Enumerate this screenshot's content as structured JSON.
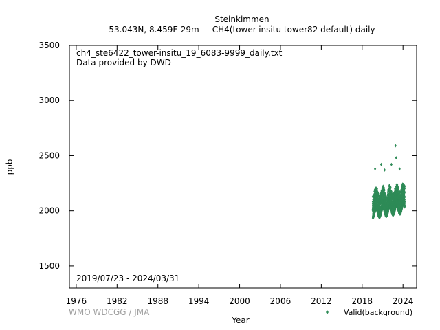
{
  "chart_data": {
    "type": "scatter",
    "title": "Steinkimmen",
    "subtitle": "53.043N, 8.459E 29m     CH4(tower-insitu tower82 default) daily",
    "xlabel": "Year",
    "ylabel": "ppb",
    "xlim": [
      1975,
      2026
    ],
    "ylim": [
      1300,
      3500
    ],
    "x_ticks": [
      1976,
      1982,
      1988,
      1994,
      2000,
      2006,
      2012,
      2018,
      2024
    ],
    "y_ticks": [
      1500,
      2000,
      2500,
      3000,
      3500
    ],
    "x_tick_labels": [
      "1976",
      "1982",
      "1988",
      "1994",
      "2000",
      "2006",
      "2012",
      "2018",
      "2024"
    ],
    "y_tick_labels": [
      "1500",
      "2000",
      "2500",
      "3000",
      "3500"
    ],
    "file_label": "ch4_ste6422_tower-insitu_19_6083-9999_daily.txt",
    "provider_label": "Data provided by DWD",
    "date_range": "2019/07/23 - 2024/03/31",
    "credit": "WMO WDCGG / JMA",
    "grid": false,
    "legend_position": "bottom-right",
    "series": [
      {
        "name": "Valid(background)",
        "color": "#2e8b57",
        "marker": "diamond",
        "x_start": 2019.56,
        "x_end": 2024.25,
        "baseline_ppb": 1990,
        "trend_ppb_per_year": 10,
        "typical_spread_ppb": [
          -20,
          180
        ],
        "notable_points": [
          {
            "x": 2019.9,
            "y": 2380
          },
          {
            "x": 2020.8,
            "y": 2420
          },
          {
            "x": 2021.3,
            "y": 2370
          },
          {
            "x": 2022.3,
            "y": 2420
          },
          {
            "x": 2022.9,
            "y": 2590
          },
          {
            "x": 2023.0,
            "y": 2480
          },
          {
            "x": 2023.5,
            "y": 2380
          }
        ]
      }
    ]
  }
}
